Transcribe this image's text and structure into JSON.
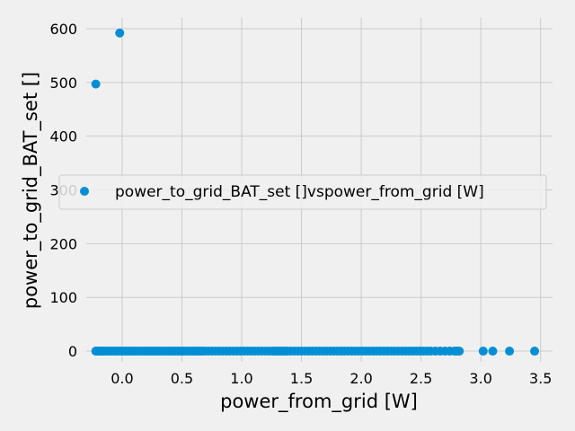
{
  "chart_data": {
    "type": "scatter",
    "xlabel": "power_from_grid [W]",
    "ylabel": "power_to_grid_BAT_set []",
    "xlim": [
      -0.3,
      3.6
    ],
    "ylim": [
      -20,
      620
    ],
    "xticks": [
      0.0,
      0.5,
      1.0,
      1.5,
      2.0,
      2.5,
      3.0,
      3.5
    ],
    "xtick_labels": [
      "0.0",
      "0.5",
      "1.0",
      "1.5",
      "2.0",
      "2.5",
      "3.0",
      "3.5"
    ],
    "yticks": [
      0,
      100,
      200,
      300,
      400,
      500,
      600
    ],
    "ytick_labels": [
      "0",
      "100",
      "200",
      "300",
      "400",
      "500",
      "600"
    ],
    "grid": true,
    "legend_position": "center",
    "series": [
      {
        "name": "power_to_grid_BAT_set []vspower_from_grid [W]",
        "color": "#008fd5",
        "points": [
          [
            -0.22,
            497
          ],
          [
            -0.02,
            592
          ],
          [
            -0.22,
            0
          ],
          [
            -0.21,
            0
          ],
          [
            -0.2,
            0
          ],
          [
            -0.19,
            0
          ],
          [
            -0.18,
            0
          ],
          [
            -0.17,
            0
          ],
          [
            -0.16,
            0
          ],
          [
            -0.15,
            0
          ],
          [
            -0.13,
            0
          ],
          [
            -0.11,
            0
          ],
          [
            -0.09,
            0
          ],
          [
            -0.07,
            0
          ],
          [
            -0.05,
            0
          ],
          [
            -0.03,
            0
          ],
          [
            -0.01,
            0
          ],
          [
            0.01,
            0
          ],
          [
            0.03,
            0
          ],
          [
            0.05,
            0
          ],
          [
            0.07,
            0
          ],
          [
            0.09,
            0
          ],
          [
            0.11,
            0
          ],
          [
            0.13,
            0
          ],
          [
            0.15,
            0
          ],
          [
            0.17,
            0
          ],
          [
            0.19,
            0
          ],
          [
            0.21,
            0
          ],
          [
            0.23,
            0
          ],
          [
            0.25,
            0
          ],
          [
            0.27,
            0
          ],
          [
            0.29,
            0
          ],
          [
            0.31,
            0
          ],
          [
            0.33,
            0
          ],
          [
            0.35,
            0
          ],
          [
            0.37,
            0
          ],
          [
            0.39,
            0
          ],
          [
            0.41,
            0
          ],
          [
            0.43,
            0
          ],
          [
            0.45,
            0
          ],
          [
            0.47,
            0
          ],
          [
            0.49,
            0
          ],
          [
            0.51,
            0
          ],
          [
            0.53,
            0
          ],
          [
            0.55,
            0
          ],
          [
            0.57,
            0
          ],
          [
            0.59,
            0
          ],
          [
            0.61,
            0
          ],
          [
            0.63,
            0
          ],
          [
            0.65,
            0
          ],
          [
            0.67,
            0
          ],
          [
            0.69,
            0
          ],
          [
            0.72,
            0
          ],
          [
            0.75,
            0
          ],
          [
            0.78,
            0
          ],
          [
            0.81,
            0
          ],
          [
            0.84,
            0
          ],
          [
            0.87,
            0
          ],
          [
            0.9,
            0
          ],
          [
            0.93,
            0
          ],
          [
            0.96,
            0
          ],
          [
            0.99,
            0
          ],
          [
            1.02,
            0
          ],
          [
            1.05,
            0
          ],
          [
            1.08,
            0
          ],
          [
            1.11,
            0
          ],
          [
            1.14,
            0
          ],
          [
            1.17,
            0
          ],
          [
            1.2,
            0
          ],
          [
            1.23,
            0
          ],
          [
            1.26,
            0
          ],
          [
            1.28,
            0
          ],
          [
            1.3,
            0
          ],
          [
            1.32,
            0
          ],
          [
            1.34,
            0
          ],
          [
            1.36,
            0
          ],
          [
            1.38,
            0
          ],
          [
            1.41,
            0
          ],
          [
            1.44,
            0
          ],
          [
            1.47,
            0
          ],
          [
            1.5,
            0
          ],
          [
            1.53,
            0
          ],
          [
            1.56,
            0
          ],
          [
            1.59,
            0
          ],
          [
            1.62,
            0
          ],
          [
            1.65,
            0
          ],
          [
            1.68,
            0
          ],
          [
            1.71,
            0
          ],
          [
            1.74,
            0
          ],
          [
            1.77,
            0
          ],
          [
            1.8,
            0
          ],
          [
            1.83,
            0
          ],
          [
            1.86,
            0
          ],
          [
            1.89,
            0
          ],
          [
            1.92,
            0
          ],
          [
            1.95,
            0
          ],
          [
            1.98,
            0
          ],
          [
            2.01,
            0
          ],
          [
            2.04,
            0
          ],
          [
            2.07,
            0
          ],
          [
            2.1,
            0
          ],
          [
            2.13,
            0
          ],
          [
            2.16,
            0
          ],
          [
            2.19,
            0
          ],
          [
            2.22,
            0
          ],
          [
            2.25,
            0
          ],
          [
            2.28,
            0
          ],
          [
            2.31,
            0
          ],
          [
            2.34,
            0
          ],
          [
            2.37,
            0
          ],
          [
            2.4,
            0
          ],
          [
            2.43,
            0
          ],
          [
            2.46,
            0
          ],
          [
            2.49,
            0
          ],
          [
            2.52,
            0
          ],
          [
            2.55,
            0
          ],
          [
            2.58,
            0
          ],
          [
            2.62,
            0
          ],
          [
            2.66,
            0
          ],
          [
            2.7,
            0
          ],
          [
            2.74,
            0
          ],
          [
            2.78,
            0
          ],
          [
            2.8,
            0
          ],
          [
            2.82,
            0
          ],
          [
            3.02,
            0
          ],
          [
            3.1,
            0
          ],
          [
            3.24,
            0
          ],
          [
            3.45,
            0
          ]
        ]
      }
    ]
  }
}
